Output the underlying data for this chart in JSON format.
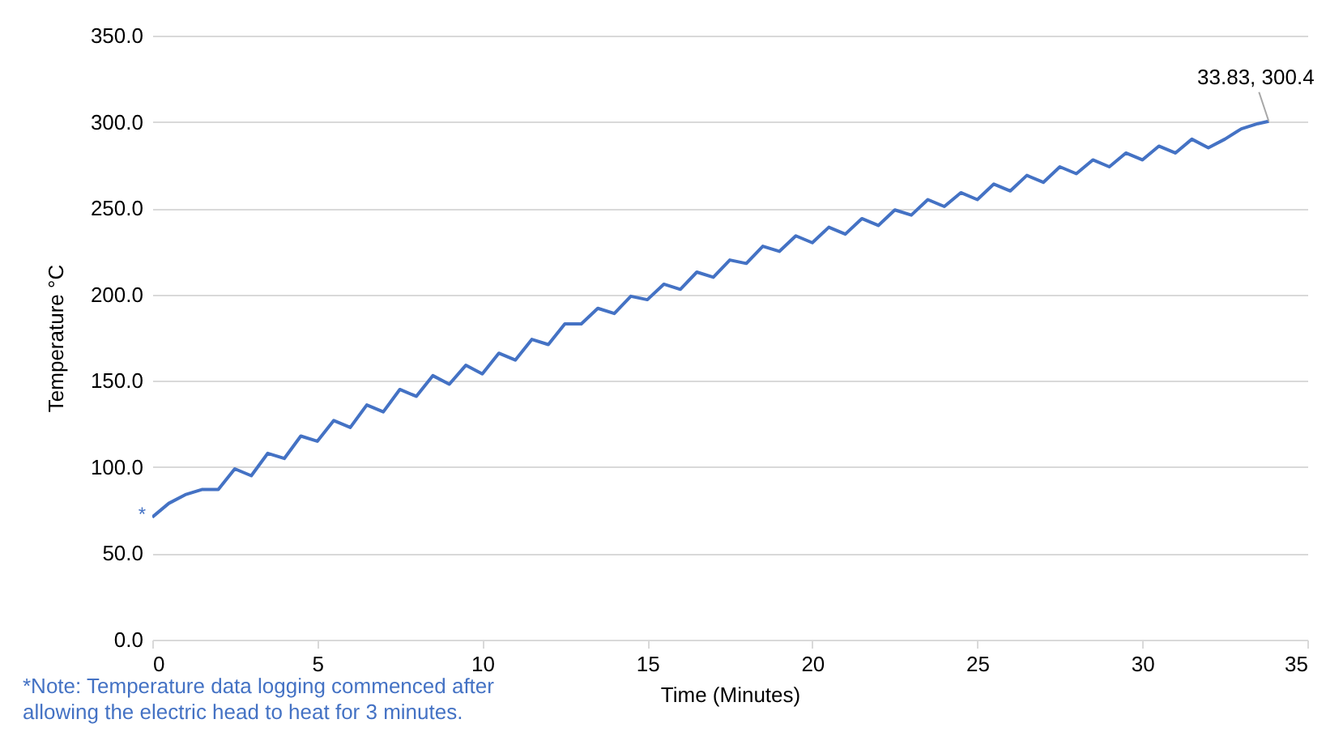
{
  "chart_data": {
    "type": "line",
    "xlabel": "Time (Minutes)",
    "ylabel": "Temperature °C",
    "x": [
      0,
      0.5,
      1,
      1.5,
      2,
      2.5,
      3,
      3.5,
      4,
      4.5,
      5,
      5.5,
      6,
      6.5,
      7,
      7.5,
      8,
      8.5,
      9,
      9.5,
      10,
      10.5,
      11,
      11.5,
      12,
      12.5,
      13,
      13.5,
      14,
      14.5,
      15,
      15.5,
      16,
      16.5,
      17,
      17.5,
      18,
      18.5,
      19,
      19.5,
      20,
      20.5,
      21,
      21.5,
      22,
      22.5,
      23,
      23.5,
      24,
      24.5,
      25,
      25.5,
      26,
      26.5,
      27,
      27.5,
      28,
      28.5,
      29,
      29.5,
      30,
      30.5,
      31,
      31.5,
      32,
      32.5,
      33,
      33.5,
      33.83
    ],
    "series": [
      {
        "color": "#4472c4",
        "values": [
          71,
          79,
          84,
          87,
          87,
          99,
          95,
          108,
          105,
          118,
          115,
          127,
          123,
          136,
          132,
          145,
          141,
          153,
          148,
          159,
          154,
          166,
          162,
          174,
          171,
          183,
          183,
          192,
          189,
          199,
          197,
          206,
          203,
          213,
          210,
          220,
          218,
          228,
          225,
          234,
          230,
          239,
          235,
          244,
          240,
          249,
          246,
          255,
          251,
          259,
          255,
          264,
          260,
          269,
          265,
          274,
          270,
          278,
          274,
          282,
          278,
          286,
          282,
          290,
          285,
          290,
          296,
          299,
          300.4
        ]
      }
    ],
    "xlim": [
      0,
      35
    ],
    "xticks": [
      0,
      5,
      10,
      15,
      20,
      25,
      30,
      35
    ],
    "ylim": [
      0,
      350
    ],
    "yticks": [
      {
        "value": 0,
        "label": "0.0"
      },
      {
        "value": 50,
        "label": "50.0"
      },
      {
        "value": 100,
        "label": "100.0"
      },
      {
        "value": 150,
        "label": "150.0"
      },
      {
        "value": 200,
        "label": "200.0"
      },
      {
        "value": 250,
        "label": "250.0"
      },
      {
        "value": 300,
        "label": "300.0"
      },
      {
        "value": 350,
        "label": "350.0"
      }
    ],
    "grid": "y",
    "marker": "none",
    "line_style": "solid",
    "annotations": [
      {
        "text": "33.83, 300.4",
        "x": 33.83,
        "y": 300.4
      },
      {
        "text": "*",
        "x": 0,
        "y": 71
      },
      "*Note: Temperature data logging commenced after allowing the electric head to heat for 3 minutes."
    ]
  }
}
